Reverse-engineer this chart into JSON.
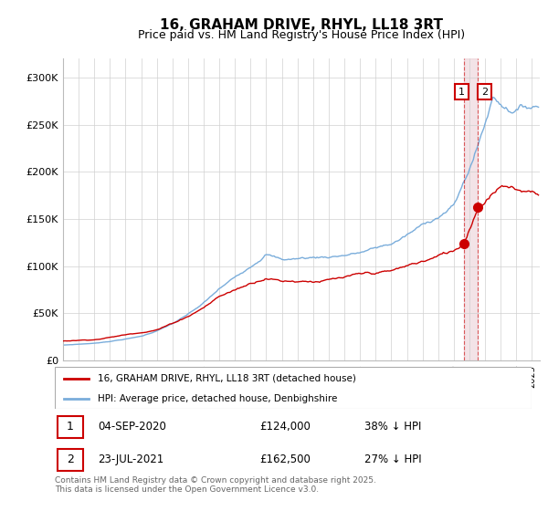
{
  "title": "16, GRAHAM DRIVE, RHYL, LL18 3RT",
  "subtitle": "Price paid vs. HM Land Registry's House Price Index (HPI)",
  "ylim": [
    0,
    320000
  ],
  "xlim_start": 1995,
  "xlim_end": 2025.5,
  "yticks": [
    0,
    50000,
    100000,
    150000,
    200000,
    250000,
    300000
  ],
  "ytick_labels": [
    "£0",
    "£50K",
    "£100K",
    "£150K",
    "£200K",
    "£250K",
    "£300K"
  ],
  "legend_line1": "16, GRAHAM DRIVE, RHYL, LL18 3RT (detached house)",
  "legend_line2": "HPI: Average price, detached house, Denbighshire",
  "annotation1_date": "04-SEP-2020",
  "annotation1_price": "£124,000",
  "annotation1_hpi": "38% ↓ HPI",
  "annotation2_date": "23-JUL-2021",
  "annotation2_price": "£162,500",
  "annotation2_hpi": "27% ↓ HPI",
  "marker1_x": 2020.67,
  "marker1_y": 124000,
  "marker2_x": 2021.55,
  "marker2_y": 162500,
  "vline1_x": 2020.67,
  "vline2_x": 2021.55,
  "footer": "Contains HM Land Registry data © Crown copyright and database right 2025.\nThis data is licensed under the Open Government Licence v3.0.",
  "line_color_red": "#cc0000",
  "line_color_blue": "#7aaddb",
  "vline_color": "#cc0000",
  "background_color": "#ffffff",
  "grid_color": "#d0d0d0",
  "title_fontsize": 11,
  "subtitle_fontsize": 9,
  "tick_fontsize": 8
}
